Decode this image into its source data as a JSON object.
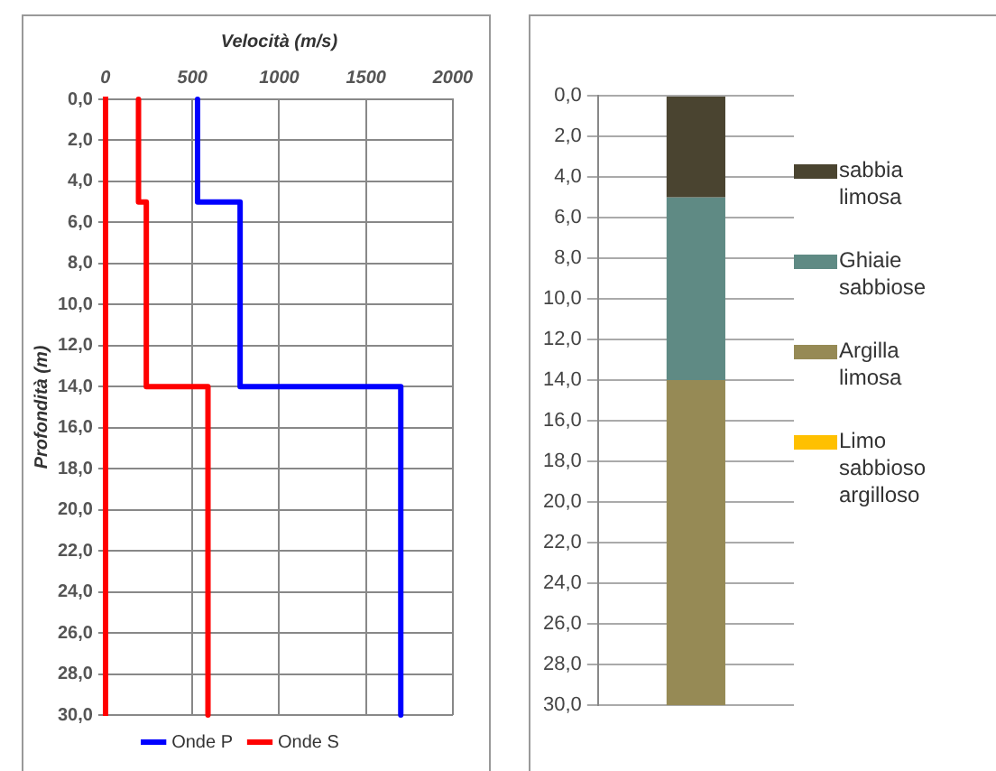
{
  "chart_data": [
    {
      "type": "line",
      "xlabel": "Velocità (m/s)",
      "ylabel": "Profondità (m)",
      "xlim": [
        0,
        2000
      ],
      "xticks": [
        0,
        500,
        1000,
        1500,
        2000
      ],
      "ylim": [
        30,
        0
      ],
      "yticks": [
        {
          "value": 0,
          "label": "0,0"
        },
        {
          "value": 2,
          "label": "2,0"
        },
        {
          "value": 4,
          "label": "4,0"
        },
        {
          "value": 6,
          "label": "6,0"
        },
        {
          "value": 8,
          "label": "8,0"
        },
        {
          "value": 10,
          "label": "10,0"
        },
        {
          "value": 12,
          "label": "12,0"
        },
        {
          "value": 14,
          "label": "14,0"
        },
        {
          "value": 16,
          "label": "16,0"
        },
        {
          "value": 18,
          "label": "18,0"
        },
        {
          "value": 20,
          "label": "20,0"
        },
        {
          "value": 22,
          "label": "22,0"
        },
        {
          "value": 24,
          "label": "24,0"
        },
        {
          "value": 26,
          "label": "26,0"
        },
        {
          "value": 28,
          "label": "28,0"
        },
        {
          "value": 30,
          "label": "30,0"
        }
      ],
      "grid": true,
      "legend": "bottom",
      "series": [
        {
          "name": "Onde P",
          "color": "#0000ff",
          "x": [
            530,
            530,
            775,
            775,
            1700,
            1700
          ],
          "values": [
            0,
            5,
            5,
            14,
            14,
            30
          ]
        },
        {
          "name": "Onde S",
          "color": "#ff0000",
          "x": [
            190,
            190,
            235,
            235,
            590,
            590
          ],
          "values": [
            0,
            5,
            5,
            14,
            14,
            30
          ]
        }
      ]
    },
    {
      "type": "bar",
      "stacked": true,
      "categories": [
        null
      ],
      "ylim": [
        30,
        0
      ],
      "yticks": [
        {
          "value": 0,
          "label": "0,0"
        },
        {
          "value": 2,
          "label": "2,0"
        },
        {
          "value": 4,
          "label": "4,0"
        },
        {
          "value": 6,
          "label": "6,0"
        },
        {
          "value": 8,
          "label": "8,0"
        },
        {
          "value": 10,
          "label": "10,0"
        },
        {
          "value": 12,
          "label": "12,0"
        },
        {
          "value": 14,
          "label": "14,0"
        },
        {
          "value": 16,
          "label": "16,0"
        },
        {
          "value": 18,
          "label": "18,0"
        },
        {
          "value": 20,
          "label": "20,0"
        },
        {
          "value": 22,
          "label": "22,0"
        },
        {
          "value": 24,
          "label": "24,0"
        },
        {
          "value": 26,
          "label": "26,0"
        },
        {
          "value": 28,
          "label": "28,0"
        },
        {
          "value": 30,
          "label": "30,0"
        }
      ],
      "grid": "y",
      "legend": "right",
      "series": [
        {
          "name": "sabbia limosa",
          "color": "#4a4430",
          "values": [
            5
          ]
        },
        {
          "name": "Ghiaie sabbiose",
          "color": "#5f8a84",
          "values": [
            9
          ]
        },
        {
          "name": "Argilla limosa",
          "color": "#968a55",
          "values": [
            16
          ]
        },
        {
          "name": "Limo sabbioso argilloso",
          "color": "#ffc000",
          "values": [
            0
          ]
        }
      ]
    }
  ]
}
